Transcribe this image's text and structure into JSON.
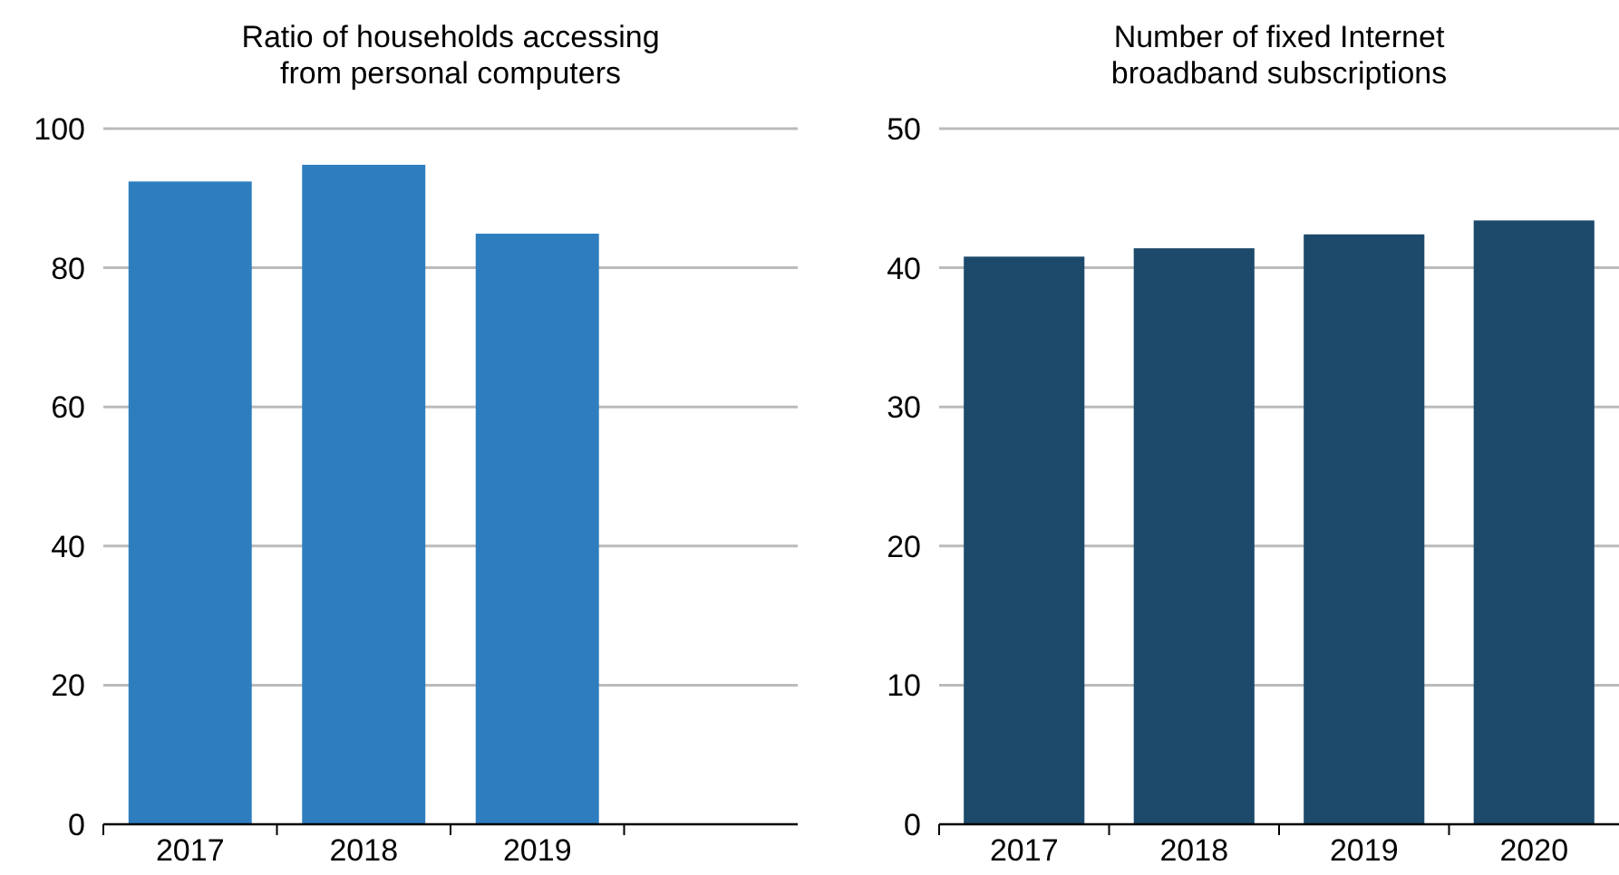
{
  "chart_data": [
    {
      "type": "bar",
      "title": "Ratio of households accessing\nfrom personal computers",
      "categories": [
        "2017",
        "2018",
        "2019",
        null
      ],
      "values": [
        92.4,
        94.8,
        84.9,
        null
      ],
      "color": "#2e7ebf",
      "ylim": [
        0,
        100
      ],
      "yticks": [
        0,
        20,
        40,
        60,
        80,
        100
      ],
      "grid": "y"
    },
    {
      "type": "bar",
      "title": "Number of fixed Internet\nbroadband subscriptions",
      "categories": [
        "2017",
        "2018",
        "2019",
        "2020"
      ],
      "values": [
        40.8,
        41.4,
        42.4,
        43.4
      ],
      "color": "#1d4a6b",
      "ylim": [
        0,
        50
      ],
      "yticks": [
        0,
        10,
        20,
        30,
        40,
        50
      ],
      "grid": "y"
    }
  ]
}
